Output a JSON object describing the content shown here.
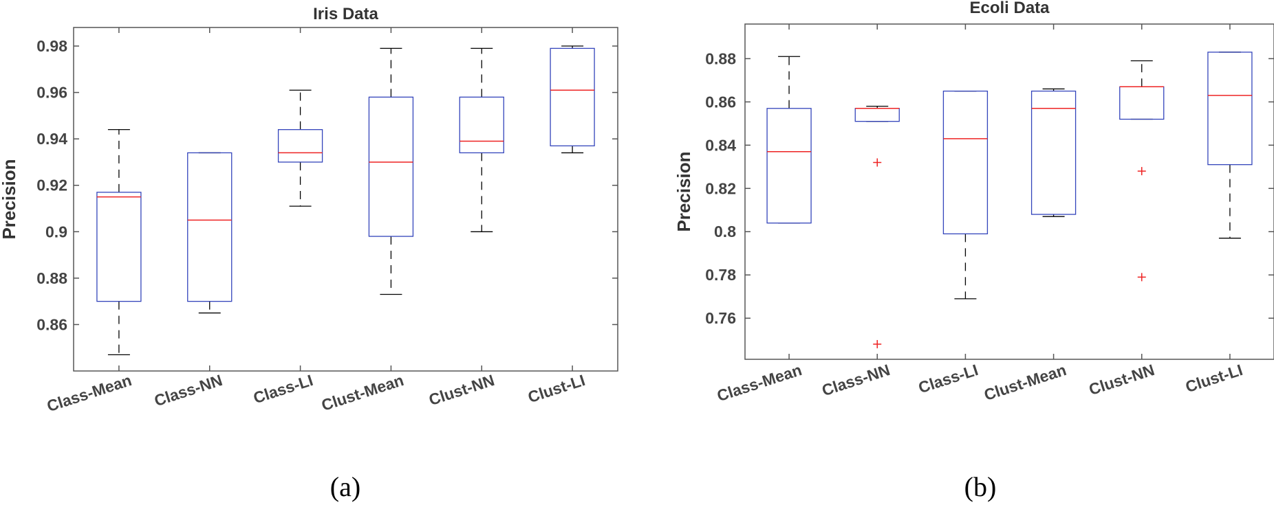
{
  "colors": {
    "box": "#3344bb",
    "median": "#ee2222",
    "whisker": "#000000",
    "outlier": "#ee2222",
    "axis": "#555555"
  },
  "chart_data": [
    {
      "type": "box",
      "title": "Iris Data",
      "ylabel": "Precision",
      "caption": "(a)",
      "categories": [
        "Class-Mean",
        "Class-NN",
        "Class-LI",
        "Clust-Mean",
        "Clust-NN",
        "Clust-LI"
      ],
      "ylim": [
        0.84,
        0.988
      ],
      "yticks": [
        "0.86",
        "0.88",
        "0.9",
        "0.92",
        "0.94",
        "0.96",
        "0.98"
      ],
      "boxes": [
        {
          "min": 0.847,
          "q1": 0.87,
          "median": 0.915,
          "q3": 0.917,
          "max": 0.944,
          "outliers": []
        },
        {
          "min": 0.865,
          "q1": 0.87,
          "median": 0.905,
          "q3": 0.934,
          "max": 0.934,
          "outliers": []
        },
        {
          "min": 0.911,
          "q1": 0.93,
          "median": 0.934,
          "q3": 0.944,
          "max": 0.961,
          "outliers": []
        },
        {
          "min": 0.873,
          "q1": 0.898,
          "median": 0.93,
          "q3": 0.958,
          "max": 0.979,
          "outliers": []
        },
        {
          "min": 0.9,
          "q1": 0.934,
          "median": 0.939,
          "q3": 0.958,
          "max": 0.979,
          "outliers": []
        },
        {
          "min": 0.934,
          "q1": 0.937,
          "median": 0.961,
          "q3": 0.979,
          "max": 0.98,
          "outliers": []
        }
      ]
    },
    {
      "type": "box",
      "title": "Ecoli Data",
      "ylabel": "Precision",
      "caption": "(b)",
      "categories": [
        "Class-Mean",
        "Class-NN",
        "Class-LI",
        "Clust-Mean",
        "Clust-NN",
        "Clust-LI"
      ],
      "ylim": [
        0.741,
        0.896
      ],
      "yticks": [
        "0.76",
        "0.78",
        "0.8",
        "0.82",
        "0.84",
        "0.86",
        "0.88"
      ],
      "boxes": [
        {
          "min": 0.804,
          "q1": 0.804,
          "median": 0.837,
          "q3": 0.857,
          "max": 0.881,
          "outliers": []
        },
        {
          "min": 0.851,
          "q1": 0.851,
          "median": 0.857,
          "q3": 0.857,
          "max": 0.858,
          "outliers": [
            0.832,
            0.748
          ]
        },
        {
          "min": 0.769,
          "q1": 0.799,
          "median": 0.843,
          "q3": 0.865,
          "max": 0.865,
          "outliers": []
        },
        {
          "min": 0.807,
          "q1": 0.808,
          "median": 0.857,
          "q3": 0.865,
          "max": 0.866,
          "outliers": []
        },
        {
          "min": 0.852,
          "q1": 0.852,
          "median": 0.867,
          "q3": 0.867,
          "max": 0.879,
          "outliers": [
            0.828,
            0.779
          ]
        },
        {
          "min": 0.797,
          "q1": 0.831,
          "median": 0.863,
          "q3": 0.883,
          "max": 0.883,
          "outliers": []
        }
      ]
    }
  ]
}
